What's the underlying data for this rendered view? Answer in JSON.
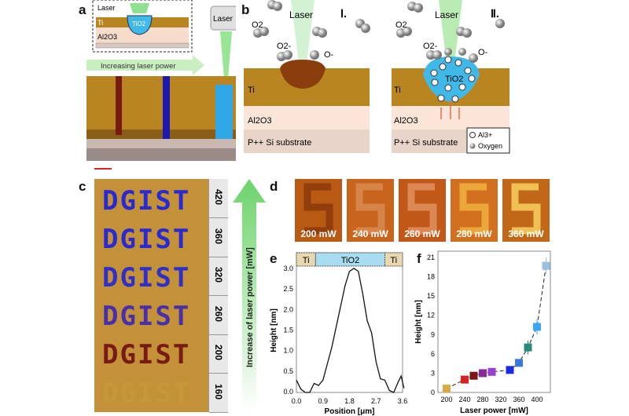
{
  "panels": {
    "a": "a",
    "b": "b",
    "c": "c",
    "d": "d",
    "e": "e",
    "f": "f"
  },
  "panel_a": {
    "inset_laser": "Laser",
    "inset_ti": "Ti",
    "inset_tio2": "TiO2",
    "inset_al2o3": "Al2O3",
    "arrow_label": "Increasing laser power",
    "laser_head": "Laser"
  },
  "panel_b": {
    "laser": "Laser",
    "stage1": "Ⅰ.",
    "stage2": "Ⅱ.",
    "o2": "O2",
    "o2_minus": "O2-",
    "o_minus": "O-",
    "ti": "Ti",
    "al2o3": "Al2O3",
    "substrate": "P++ Si substrate",
    "tio2": "TiO2",
    "legend": [
      {
        "label": "Al3+",
        "marker": "open-circle"
      },
      {
        "label": "Oxygen",
        "marker": "grey-sphere"
      }
    ]
  },
  "panel_c": {
    "word": "DGIST",
    "rows": [
      {
        "power": "420",
        "color": "#2a2ad0"
      },
      {
        "power": "360",
        "color": "#2a2ad0"
      },
      {
        "power": "320",
        "color": "#3030c8"
      },
      {
        "power": "260",
        "color": "#4a30a8"
      },
      {
        "power": "200",
        "color": "#7a1a14"
      },
      {
        "power": "160",
        "color": "#c8a040"
      }
    ],
    "axis_label": "Increase of laser power [mW]"
  },
  "panel_d": {
    "images": [
      {
        "label": "200 mW"
      },
      {
        "label": "240 mW"
      },
      {
        "label": "260 mW"
      },
      {
        "label": "280 mW"
      },
      {
        "label": "360 mW"
      }
    ]
  },
  "chart_data": [
    {
      "type": "line",
      "panel": "e",
      "xlabel": "Position [μm]",
      "ylabel": "Height [nm]",
      "xlim": [
        0,
        3.6
      ],
      "ylim": [
        0,
        3.0
      ],
      "xticks": [
        "0.0",
        "0.9",
        "1.8",
        "2.7",
        "3.6"
      ],
      "yticks": [
        "0.0",
        "0.5",
        "1.0",
        "1.5",
        "2.0",
        "2.5",
        "3.0"
      ],
      "regions": [
        {
          "label": "Ti",
          "from": 0,
          "to": 0.65
        },
        {
          "label": "TiO2",
          "from": 0.65,
          "to": 3.0
        },
        {
          "label": "Ti",
          "from": 3.0,
          "to": 3.6
        }
      ],
      "x": [
        0,
        0.15,
        0.3,
        0.45,
        0.6,
        0.75,
        0.9,
        1.05,
        1.2,
        1.35,
        1.5,
        1.65,
        1.8,
        1.95,
        2.1,
        2.25,
        2.4,
        2.55,
        2.7,
        2.85,
        3.0,
        3.15,
        3.3,
        3.45,
        3.55,
        3.65
      ],
      "y": [
        0.3,
        0.08,
        0.0,
        0.0,
        0.22,
        0.17,
        0.3,
        0.7,
        1.1,
        1.6,
        2.1,
        2.6,
        2.95,
        3.02,
        2.95,
        2.4,
        1.75,
        1.45,
        0.75,
        0.33,
        0.3,
        0.05,
        0.0,
        0.25,
        0.4,
        0.1
      ]
    },
    {
      "type": "scatter",
      "panel": "f",
      "xlabel": "Laser power [mW]",
      "ylabel": "Height [nm]",
      "xlim": [
        195,
        430
      ],
      "ylim": [
        0,
        22
      ],
      "xticks": [
        "200",
        "240",
        "280",
        "320",
        "360",
        "400"
      ],
      "yticks": [
        "0",
        "3",
        "6",
        "9",
        "12",
        "15",
        "18",
        "21"
      ],
      "points": [
        {
          "x": 200,
          "y": 0.6,
          "err": 0,
          "color": "#d8aa48"
        },
        {
          "x": 240,
          "y": 2.0,
          "err": 0,
          "color": "#d42222"
        },
        {
          "x": 260,
          "y": 2.6,
          "err": 0,
          "color": "#7a1616"
        },
        {
          "x": 280,
          "y": 3.0,
          "err": 0,
          "color": "#8a2a9a"
        },
        {
          "x": 300,
          "y": 3.2,
          "err": 0,
          "color": "#9a40d0"
        },
        {
          "x": 340,
          "y": 3.5,
          "err": 0,
          "color": "#1a2ae0"
        },
        {
          "x": 360,
          "y": 4.6,
          "err": 0,
          "color": "#3a78e0"
        },
        {
          "x": 380,
          "y": 7.0,
          "err": 1.1,
          "color": "#2a8a7a"
        },
        {
          "x": 400,
          "y": 10.2,
          "err": 1.2,
          "color": "#3aa8f0"
        },
        {
          "x": 420,
          "y": 19.7,
          "err": 1.3,
          "color": "#9cc0e0"
        }
      ]
    }
  ]
}
